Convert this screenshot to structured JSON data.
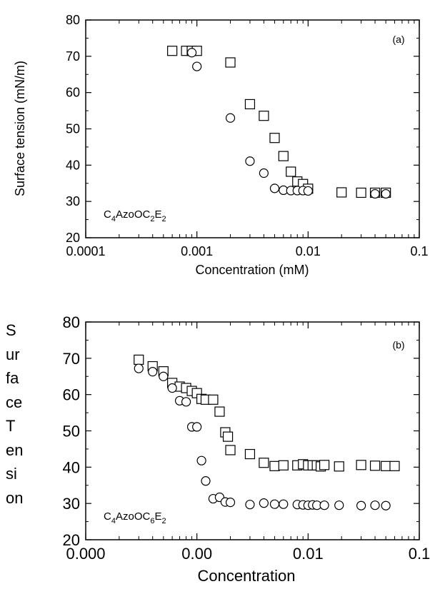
{
  "chart_data": [
    {
      "type": "scatter",
      "panel_label": "(a)",
      "annotation": {
        "parts": [
          "C",
          "4",
          "AzoOC",
          "2",
          "E",
          "2"
        ]
      },
      "xlabel": "Concentration (mM)",
      "ylabel": "Surface tension (mN/m)",
      "xscale": "log",
      "xlim": [
        0.0001,
        0.1
      ],
      "ylim": [
        20,
        80
      ],
      "xtick_labels": [
        "0.0001",
        "0.001",
        "0.01",
        "0.1"
      ],
      "ytick_labels": [
        "20",
        "30",
        "40",
        "50",
        "60",
        "70",
        "80"
      ],
      "grid": false,
      "series": [
        {
          "marker": "square",
          "x": [
            0.0006,
            0.0008,
            0.0009,
            0.001,
            0.002,
            0.003,
            0.004,
            0.005,
            0.006,
            0.007,
            0.008,
            0.009,
            0.01,
            0.02,
            0.03,
            0.04,
            0.05
          ],
          "y": [
            71.5,
            71.5,
            71.5,
            71.5,
            68.3,
            56.8,
            53.6,
            47.5,
            42.5,
            38.2,
            35.5,
            34.8,
            33.5,
            32.5,
            32.4,
            32.4,
            32.4
          ]
        },
        {
          "marker": "circle",
          "x": [
            0.0009,
            0.001,
            0.002,
            0.003,
            0.004,
            0.005,
            0.006,
            0.007,
            0.008,
            0.009,
            0.01,
            0.04,
            0.05
          ],
          "y": [
            71.0,
            67.2,
            53.0,
            41.1,
            37.8,
            33.6,
            33.1,
            33.0,
            33.0,
            33.0,
            32.9,
            32.1,
            32.1
          ]
        }
      ]
    },
    {
      "type": "scatter",
      "panel_label": "(b)",
      "annotation": {
        "parts": [
          "C",
          "4",
          "AzoOC",
          "6",
          "E",
          "2"
        ]
      },
      "xlabel": "Concentration",
      "ylabel_lines": [
        "S",
        "ur",
        "fa",
        "ce",
        "T",
        "en",
        "si",
        "on"
      ],
      "xlim": [
        0.0,
        0.1
      ],
      "ylim": [
        20,
        80
      ],
      "xtick_labels": [
        "0.000",
        "0.00",
        "0.01",
        "0.1"
      ],
      "ytick_labels": [
        "20",
        "30",
        "40",
        "50",
        "60",
        "70",
        "80"
      ],
      "grid": false,
      "series": [
        {
          "marker": "square",
          "x": [
            0.0003,
            0.0004,
            0.0005,
            0.0006,
            0.0007,
            0.0008,
            0.0009,
            0.001,
            0.0011,
            0.0012,
            0.0014,
            0.0016,
            0.0018,
            0.0019,
            0.002,
            0.003,
            0.004,
            0.005,
            0.006,
            0.008,
            0.009,
            0.01,
            0.011,
            0.012,
            0.013,
            0.014,
            0.019,
            0.03,
            0.04,
            0.05,
            0.06
          ],
          "y": [
            69.6,
            67.8,
            66.4,
            63.2,
            62.2,
            61.8,
            61.0,
            60.4,
            58.8,
            58.6,
            58.6,
            55.3,
            49.6,
            48.4,
            44.7,
            43.6,
            41.2,
            40.3,
            40.5,
            40.5,
            40.8,
            40.5,
            40.5,
            40.5,
            40.2,
            40.6,
            40.2,
            40.6,
            40.4,
            40.3,
            40.3
          ]
        },
        {
          "marker": "circle",
          "x": [
            0.0003,
            0.0004,
            0.0005,
            0.0006,
            0.0007,
            0.0008,
            0.0009,
            0.001,
            0.0011,
            0.0012,
            0.0014,
            0.0016,
            0.0018,
            0.002,
            0.003,
            0.004,
            0.005,
            0.006,
            0.008,
            0.009,
            0.01,
            0.011,
            0.012,
            0.014,
            0.019,
            0.03,
            0.04,
            0.05
          ],
          "y": [
            67.2,
            66.3,
            65.0,
            61.8,
            58.3,
            58.0,
            51.1,
            51.1,
            41.8,
            36.2,
            31.3,
            31.7,
            30.4,
            30.3,
            29.7,
            30.1,
            29.8,
            29.8,
            29.7,
            29.6,
            29.5,
            29.6,
            29.5,
            29.5,
            29.5,
            29.4,
            29.5,
            29.4
          ]
        }
      ]
    }
  ]
}
